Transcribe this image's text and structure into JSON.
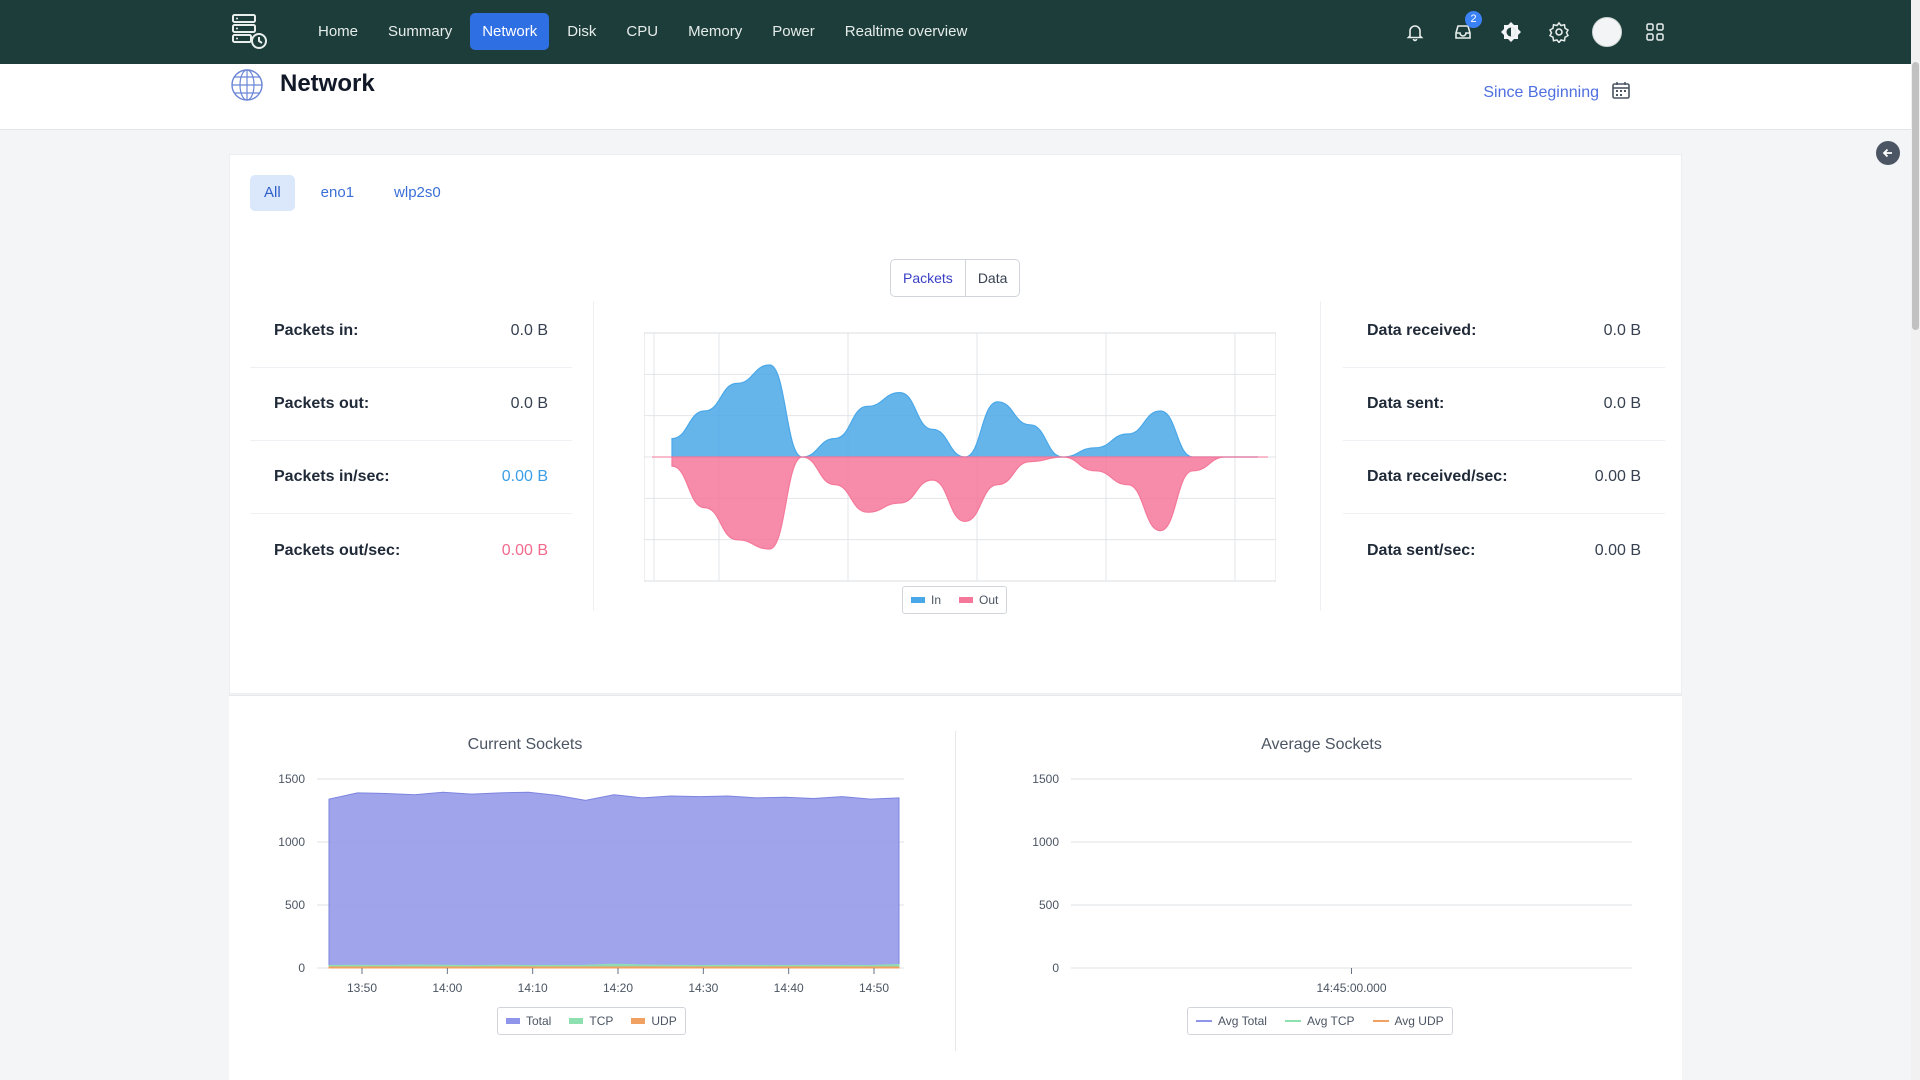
{
  "nav": {
    "items": [
      "Home",
      "Summary",
      "Network",
      "Disk",
      "CPU",
      "Memory",
      "Power",
      "Realtime overview"
    ],
    "active": "Network",
    "inbox_badge": "2"
  },
  "page": {
    "title": "Network",
    "range_label": "Since Beginning"
  },
  "interfaces": {
    "tabs": [
      "All",
      "eno1",
      "wlp2s0"
    ],
    "active": "All"
  },
  "toggle": {
    "options": [
      "Packets",
      "Data"
    ],
    "active": "Packets"
  },
  "packet_stats": [
    {
      "label": "Packets in:",
      "value": "0.0 B"
    },
    {
      "label": "Packets out:",
      "value": "0.0 B"
    },
    {
      "label": "Packets in/sec:",
      "value": "0.00 B"
    },
    {
      "label": "Packets out/sec:",
      "value": "0.00 B"
    }
  ],
  "data_stats": [
    {
      "label": "Data received:",
      "value": "0.0 B"
    },
    {
      "label": "Data sent:",
      "value": "0.0 B"
    },
    {
      "label": "Data received/sec:",
      "value": "0.00 B"
    },
    {
      "label": "Data sent/sec:",
      "value": "0.00 B"
    }
  ],
  "colors": {
    "in": "#4aa8e8",
    "out": "#f5789a",
    "total": "#8f95e8",
    "tcp": "#8ee0b0",
    "udp": "#f0a060"
  },
  "chart_data": [
    {
      "type": "area",
      "legend": [
        "In",
        "Out"
      ],
      "legend_placement": "bottom",
      "grid": true,
      "series": [
        {
          "name": "In",
          "values": [
            0.2,
            0.5,
            0.8,
            1.0,
            0.0,
            0.2,
            0.55,
            0.7,
            0.3,
            0.0,
            0.6,
            0.35,
            0.0,
            0.1,
            0.25,
            0.5,
            0.0,
            0.0,
            0.0
          ]
        },
        {
          "name": "Out",
          "values": [
            -0.1,
            -0.55,
            -0.9,
            -1.0,
            0.0,
            -0.3,
            -0.6,
            -0.5,
            -0.25,
            -0.7,
            -0.3,
            -0.05,
            0.0,
            -0.15,
            -0.3,
            -0.8,
            -0.15,
            0.0,
            0.0
          ]
        }
      ]
    },
    {
      "type": "area",
      "title": "Current Sockets",
      "x_ticks": [
        "13:50",
        "14:00",
        "14:10",
        "14:20",
        "14:30",
        "14:40",
        "14:50"
      ],
      "y_ticks": [
        "1500",
        "1000",
        "500",
        "0"
      ],
      "ylim": [
        0,
        1500
      ],
      "legend": [
        "Total",
        "TCP",
        "UDP"
      ],
      "legend_placement": "bottom",
      "series": [
        {
          "name": "Total",
          "values": [
            1340,
            1390,
            1385,
            1375,
            1395,
            1380,
            1390,
            1395,
            1370,
            1330,
            1375,
            1350,
            1365,
            1360,
            1365,
            1350,
            1355,
            1345,
            1360,
            1340,
            1350
          ]
        },
        {
          "name": "TCP",
          "values": [
            20,
            22,
            20,
            24,
            22,
            20,
            22,
            20,
            21,
            22,
            30,
            24,
            22,
            20,
            22,
            21,
            20,
            22,
            21,
            20,
            28
          ]
        },
        {
          "name": "UDP",
          "values": [
            8,
            8,
            9,
            8,
            8,
            8,
            9,
            8,
            8,
            8,
            8,
            9,
            8,
            8,
            8,
            8,
            9,
            8,
            8,
            8,
            8
          ]
        }
      ]
    },
    {
      "type": "line",
      "title": "Average Sockets",
      "x_ticks": [
        "14:45:00.000"
      ],
      "y_ticks": [
        "1500",
        "1000",
        "500",
        "0"
      ],
      "ylim": [
        0,
        1500
      ],
      "legend": [
        "Avg Total",
        "Avg TCP",
        "Avg UDP"
      ],
      "legend_placement": "bottom",
      "series": [
        {
          "name": "Avg Total",
          "values": []
        },
        {
          "name": "Avg TCP",
          "values": []
        },
        {
          "name": "Avg UDP",
          "values": []
        }
      ]
    }
  ]
}
